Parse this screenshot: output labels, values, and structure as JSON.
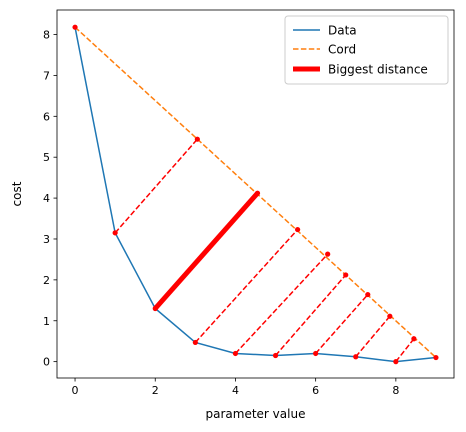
{
  "chart_data": {
    "type": "line",
    "xlabel": "parameter value",
    "ylabel": "cost",
    "xlim": [
      -0.45,
      9.45
    ],
    "ylim": [
      -0.4,
      8.6
    ],
    "xticks": [
      0,
      2,
      4,
      6,
      8
    ],
    "yticks": [
      0,
      1,
      2,
      3,
      4,
      5,
      6,
      7,
      8
    ],
    "grid": false,
    "legend_position": "top-right",
    "legend": {
      "data_label": "Data",
      "cord_label": "Cord",
      "biggest_label": "Biggest distance"
    },
    "series": [
      {
        "name": "Data",
        "style": "solid",
        "color": "#1f77b4",
        "x": [
          0,
          1,
          2,
          3,
          4,
          5,
          6,
          7,
          8,
          9
        ],
        "y": [
          8.18,
          3.15,
          1.3,
          0.47,
          0.2,
          0.15,
          0.2,
          0.12,
          0.0,
          0.1
        ]
      },
      {
        "name": "Cord",
        "style": "dashed",
        "color": "#ff7f0e",
        "x": [
          0,
          9
        ],
        "y": [
          8.18,
          0.1
        ]
      }
    ],
    "distance_segments": {
      "color": "#ff0000",
      "style": "dashed",
      "from": [
        [
          1,
          3.15
        ],
        [
          2,
          1.3
        ],
        [
          3,
          0.47
        ],
        [
          4,
          0.2
        ],
        [
          5,
          0.15
        ],
        [
          6,
          0.2
        ],
        [
          7,
          0.12
        ],
        [
          8,
          0.0
        ]
      ],
      "to": [
        [
          3.05,
          5.44
        ],
        [
          4.55,
          4.12
        ],
        [
          5.55,
          3.23
        ],
        [
          6.3,
          2.63
        ],
        [
          6.75,
          2.12
        ],
        [
          7.3,
          1.64
        ],
        [
          7.85,
          1.11
        ],
        [
          8.45,
          0.56
        ]
      ],
      "biggest_index": 1
    }
  }
}
